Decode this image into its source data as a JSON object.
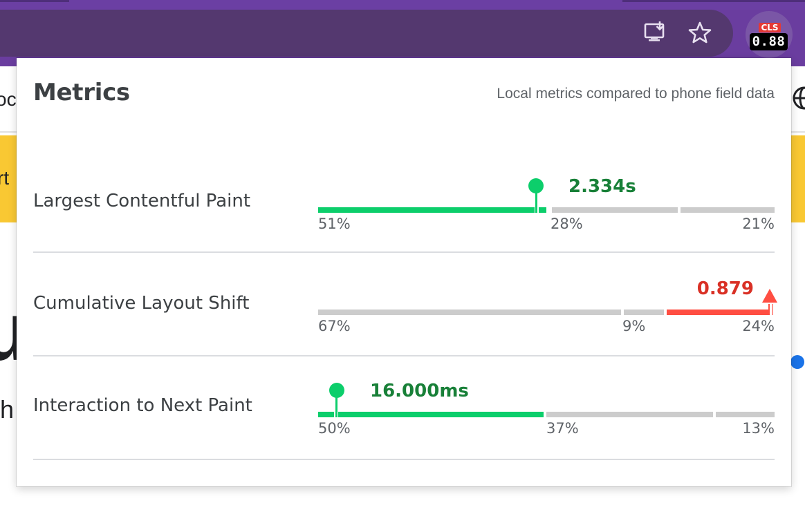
{
  "extension": {
    "badge_label": "CLS",
    "badge_value": "0.88"
  },
  "page_fragments": {
    "left_top": "oc",
    "left_yellow": "rt",
    "left_big": "u",
    "left_bottom": "th"
  },
  "popup": {
    "title": "Metrics",
    "subtitle": "Local metrics compared to phone field data",
    "metrics": [
      {
        "name": "Largest Contentful Paint",
        "value": "2.334s",
        "status": "good",
        "distribution": {
          "good": "51%",
          "needs_improvement": "28%",
          "poor": "21%"
        },
        "good_fraction": 0.51,
        "ni_fraction": 0.28,
        "poor_fraction": 0.21,
        "marker_position_fraction": 0.48
      },
      {
        "name": "Cumulative Layout Shift",
        "value": "0.879",
        "status": "poor",
        "distribution": {
          "good": "67%",
          "needs_improvement": "9%",
          "poor": "24%"
        },
        "good_fraction": 0.67,
        "ni_fraction": 0.09,
        "poor_fraction": 0.24,
        "marker_position_fraction": 1.0
      },
      {
        "name": "Interaction to Next Paint",
        "value": "16.000ms",
        "status": "good",
        "distribution": {
          "good": "50%",
          "needs_improvement": "37%",
          "poor": "13%"
        },
        "good_fraction": 0.5,
        "ni_fraction": 0.37,
        "poor_fraction": 0.13,
        "marker_position_fraction": 0.04
      }
    ]
  },
  "colors": {
    "chrome_purple": "#6a3d9f",
    "omnibox": "#54386f",
    "good": "#0cce6b",
    "good_text": "#188038",
    "poor": "#ff4e42",
    "poor_text": "#d93025",
    "neutral_bar": "#cccccc",
    "yellow": "#f9c833"
  },
  "icons": {
    "install": "install-app-icon",
    "bookmark": "bookmark-star-icon",
    "globe": "globe-icon"
  }
}
